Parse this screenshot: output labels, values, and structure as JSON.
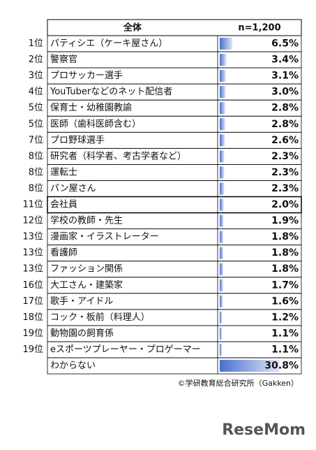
{
  "header": {
    "title": "全体",
    "n": "n=1,200"
  },
  "rows": [
    {
      "rank": "1位",
      "name": "パティシエ（ケーキ屋さん）",
      "value": 6.5,
      "label": "6.5%"
    },
    {
      "rank": "2位",
      "name": "警察官",
      "value": 3.4,
      "label": "3.4%"
    },
    {
      "rank": "3位",
      "name": "プロサッカー選手",
      "value": 3.1,
      "label": "3.1%"
    },
    {
      "rank": "4位",
      "name": "YouTuberなどのネット配信者",
      "value": 3.0,
      "label": "3.0%"
    },
    {
      "rank": "5位",
      "name": "保育士・幼稚園教諭",
      "value": 2.8,
      "label": "2.8%"
    },
    {
      "rank": "5位",
      "name": "医師（歯科医師含む）",
      "value": 2.8,
      "label": "2.8%"
    },
    {
      "rank": "7位",
      "name": "プロ野球選手",
      "value": 2.6,
      "label": "2.6%"
    },
    {
      "rank": "8位",
      "name": "研究者（科学者、考古学者など）",
      "value": 2.3,
      "label": "2.3%"
    },
    {
      "rank": "8位",
      "name": "運転士",
      "value": 2.3,
      "label": "2.3%"
    },
    {
      "rank": "8位",
      "name": "パン屋さん",
      "value": 2.3,
      "label": "2.3%"
    },
    {
      "rank": "11位",
      "name": "会社員",
      "value": 2.0,
      "label": "2.0%"
    },
    {
      "rank": "12位",
      "name": "学校の教師・先生",
      "value": 1.9,
      "label": "1.9%"
    },
    {
      "rank": "13位",
      "name": "漫画家・イラストレーター",
      "value": 1.8,
      "label": "1.8%"
    },
    {
      "rank": "13位",
      "name": "看護師",
      "value": 1.8,
      "label": "1.8%"
    },
    {
      "rank": "13位",
      "name": "ファッション関係",
      "value": 1.8,
      "label": "1.8%"
    },
    {
      "rank": "16位",
      "name": "大工さん・建築家",
      "value": 1.7,
      "label": "1.7%"
    },
    {
      "rank": "17位",
      "name": "歌手・アイドル",
      "value": 1.6,
      "label": "1.6%"
    },
    {
      "rank": "18位",
      "name": "コック・板前（料理人）",
      "value": 1.2,
      "label": "1.2%"
    },
    {
      "rank": "19位",
      "name": "動物園の飼育係",
      "value": 1.1,
      "label": "1.1%"
    },
    {
      "rank": "19位",
      "name": "eスポーツプレーヤー・プロゲーマー",
      "value": 1.1,
      "label": "1.1%"
    },
    {
      "name": "わからない",
      "value": 30.8,
      "label": "30.8%"
    }
  ],
  "footer": {
    "credit": "©学研教育総合研究所（Gakken）",
    "logo": "ReseMom"
  }
}
